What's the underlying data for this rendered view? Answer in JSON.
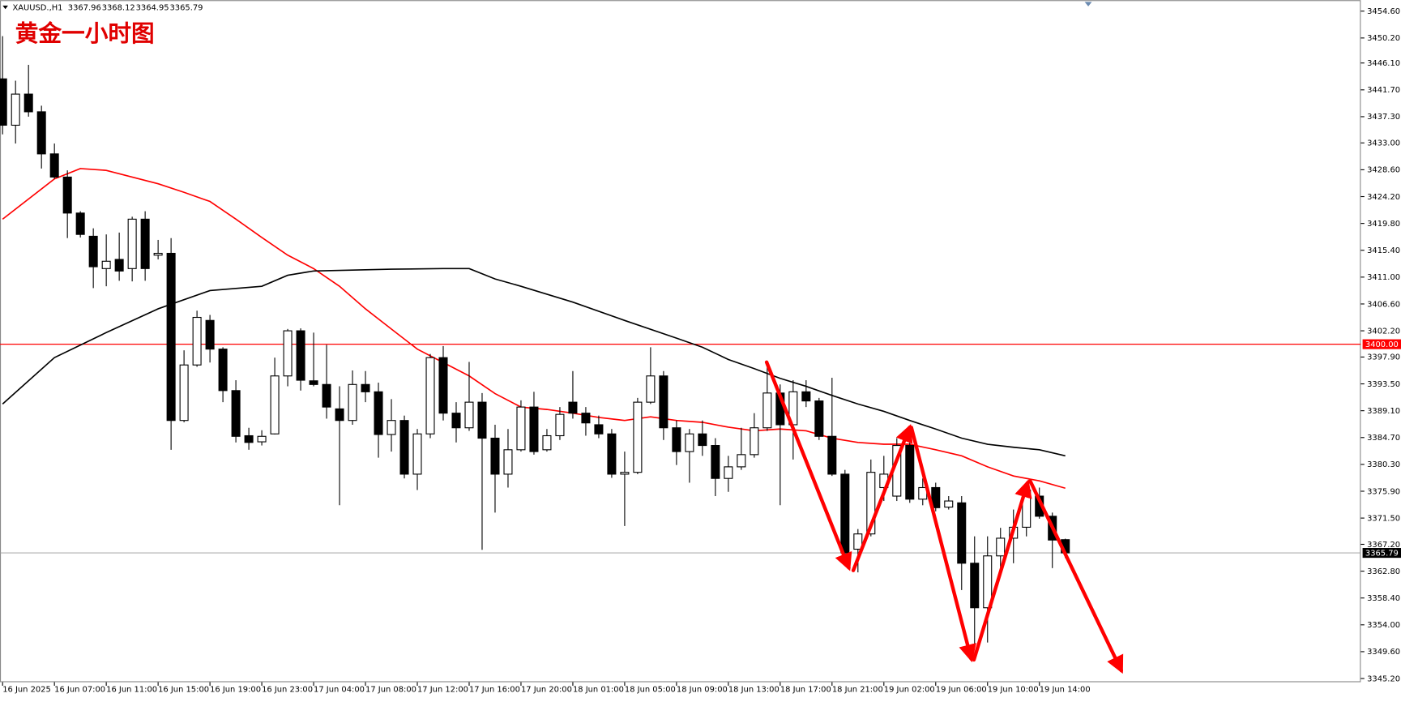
{
  "chart_data": {
    "type": "candlestick",
    "title": "黄金一小时图",
    "symbol": "XAUUSD.,H1",
    "categories": [
      "16 Jun 2025",
      null,
      null,
      null,
      "16 Jun 07:00",
      null,
      null,
      null,
      "16 Jun 11:00",
      null,
      null,
      null,
      "16 Jun 15:00",
      null,
      null,
      null,
      "16 Jun 19:00",
      null,
      null,
      null,
      "16 Jun 23:00",
      null,
      null,
      null,
      "17 Jun 04:00",
      null,
      null,
      null,
      "17 Jun 08:00",
      null,
      null,
      null,
      "17 Jun 12:00",
      null,
      null,
      null,
      "17 Jun 16:00",
      null,
      null,
      null,
      "17 Jun 20:00",
      null,
      null,
      null,
      "18 Jun 01:00",
      null,
      null,
      null,
      "18 Jun 05:00",
      null,
      null,
      null,
      "18 Jun 09:00",
      null,
      null,
      null,
      "18 Jun 13:00",
      null,
      null,
      null,
      "18 Jun 17:00",
      null,
      null,
      null,
      "18 Jun 21:00",
      null,
      null,
      null,
      "19 Jun 02:00",
      null,
      null,
      null,
      "19 Jun 06:00",
      null,
      null,
      null,
      "19 Jun 10:00",
      null,
      null,
      null,
      "19 Jun 14:00",
      null,
      null
    ],
    "open": [
      3443.5,
      3435.9,
      3441.0,
      3438.1,
      3431.2,
      3427.4,
      3421.5,
      3417.7,
      3412.4,
      3413.9,
      3412.4,
      3420.5,
      3414.6,
      3414.9,
      3387.5,
      3396.6,
      3403.9,
      3399.2,
      3392.4,
      3385.0,
      3384.0,
      3385.3,
      3394.8,
      3402.2,
      3394.0,
      3393.4,
      3389.4,
      3387.5,
      3393.4,
      3392.2,
      3385.2,
      3387.5,
      3378.7,
      3385.3,
      3397.8,
      3388.7,
      3386.3,
      3390.5,
      3384.6,
      3378.7,
      3382.7,
      3389.7,
      3382.7,
      3385.0,
      3390.5,
      3388.7,
      3386.8,
      3385.3,
      3378.7,
      3379.0,
      3390.5,
      3394.8,
      3386.3,
      3382.4,
      3385.3,
      3383.4,
      3378.0,
      3379.9,
      3381.9,
      3386.3,
      3392.0,
      3386.8,
      3392.2,
      3390.7,
      3384.9,
      3378.7,
      3366.4,
      3368.9,
      3376.5,
      3375.1,
      3383.4,
      3374.6,
      3376.5,
      3373.3,
      3374.0,
      3364.1,
      3356.8,
      3365.3,
      3368.2,
      3370.0,
      3375.1,
      3371.8,
      3367.96
    ],
    "high": [
      3450.5,
      3443.2,
      3445.8,
      3439.1,
      3432.9,
      3428.5,
      3421.8,
      3419.0,
      3418.0,
      3418.3,
      3420.9,
      3421.8,
      3417.1,
      3417.4,
      3399.0,
      3405.5,
      3404.8,
      3399.5,
      3394.1,
      3386.3,
      3385.9,
      3397.8,
      3402.5,
      3402.6,
      3401.9,
      3399.9,
      3393.1,
      3395.7,
      3395.6,
      3393.7,
      3391.0,
      3388.3,
      3386.1,
      3398.4,
      3399.7,
      3390.5,
      3397.1,
      3392.0,
      3386.8,
      3386.1,
      3390.8,
      3392.2,
      3386.1,
      3389.7,
      3395.6,
      3389.7,
      3388.3,
      3386.1,
      3382.4,
      3391.2,
      3399.5,
      3395.6,
      3387.5,
      3386.1,
      3387.5,
      3384.6,
      3381.7,
      3386.3,
      3388.7,
      3397.1,
      3393.4,
      3394.1,
      3394.1,
      3391.2,
      3394.5,
      3379.4,
      3369.7,
      3381.1,
      3381.7,
      3384.6,
      3386.3,
      3378.0,
      3377.3,
      3375.1,
      3375.1,
      3368.5,
      3368.5,
      3369.9,
      3372.9,
      3377.3,
      3376.5,
      3372.4,
      3368.12
    ],
    "low": [
      3434.4,
      3432.9,
      3437.3,
      3428.8,
      3427.1,
      3417.4,
      3417.5,
      3409.2,
      3409.5,
      3410.4,
      3410.3,
      3410.4,
      3413.9,
      3382.7,
      3387.2,
      3396.3,
      3397.0,
      3390.5,
      3383.9,
      3382.7,
      3383.4,
      3385.2,
      3393.1,
      3392.4,
      3393.1,
      3387.8,
      3373.6,
      3386.8,
      3390.5,
      3381.4,
      3382.4,
      3378.0,
      3376.1,
      3384.6,
      3387.5,
      3383.9,
      3385.8,
      3366.3,
      3372.4,
      3376.5,
      3382.4,
      3381.9,
      3382.4,
      3384.3,
      3387.8,
      3385.0,
      3384.6,
      3378.1,
      3370.2,
      3378.7,
      3390.2,
      3384.3,
      3380.2,
      3377.3,
      3381.7,
      3375.1,
      3375.8,
      3379.4,
      3381.4,
      3385.8,
      3373.6,
      3381.1,
      3389.7,
      3384.3,
      3378.4,
      3364.1,
      3362.6,
      3368.5,
      3374.3,
      3374.3,
      3374.0,
      3373.6,
      3372.6,
      3372.9,
      3359.7,
      3350.9,
      3351.1,
      3362.6,
      3364.1,
      3368.5,
      3371.4,
      3363.3,
      3364.95
    ],
    "close": [
      3435.9,
      3441.0,
      3438.1,
      3431.2,
      3427.4,
      3421.5,
      3418.0,
      3412.7,
      3413.6,
      3412.0,
      3420.5,
      3412.4,
      3414.9,
      3387.5,
      3396.6,
      3404.4,
      3399.2,
      3392.4,
      3384.9,
      3383.9,
      3384.9,
      3394.8,
      3402.2,
      3394.1,
      3393.4,
      3389.7,
      3387.5,
      3393.4,
      3392.2,
      3385.2,
      3387.5,
      3378.7,
      3385.3,
      3397.8,
      3388.7,
      3386.3,
      3390.5,
      3384.6,
      3378.7,
      3382.7,
      3389.7,
      3382.4,
      3385.0,
      3388.5,
      3388.7,
      3387.1,
      3385.3,
      3378.7,
      3379.0,
      3390.5,
      3394.8,
      3386.3,
      3382.4,
      3385.3,
      3383.4,
      3378.0,
      3379.9,
      3381.9,
      3386.3,
      3392.0,
      3386.8,
      3392.2,
      3390.7,
      3384.9,
      3378.7,
      3365.8,
      3368.9,
      3379.0,
      3378.7,
      3383.4,
      3374.6,
      3376.5,
      3373.2,
      3374.3,
      3364.1,
      3356.8,
      3365.3,
      3368.2,
      3370.0,
      3376.1,
      3371.8,
      3367.9,
      3365.79
    ],
    "up_color": "#ffffff",
    "down_color": "#000000",
    "series": [
      {
        "color": "#ff0000",
        "x": [
          0,
          4,
          6,
          8,
          10,
          12,
          14,
          16,
          18,
          20,
          22,
          24,
          26,
          28,
          30,
          32,
          34,
          36,
          38,
          40,
          42,
          44,
          46,
          48,
          50,
          52,
          54,
          56,
          58,
          60,
          62,
          64,
          66,
          68,
          70,
          72,
          74,
          76,
          78,
          80,
          82
        ],
        "values": [
          3420.5,
          3427.1,
          3428.8,
          3428.5,
          3427.4,
          3426.3,
          3424.9,
          3423.4,
          3420.5,
          3417.5,
          3414.6,
          3412.4,
          3409.5,
          3405.8,
          3402.5,
          3399.2,
          3397.0,
          3394.8,
          3391.9,
          3389.7,
          3389.3,
          3388.7,
          3388.0,
          3387.5,
          3388.1,
          3387.5,
          3387.2,
          3386.4,
          3385.8,
          3386.1,
          3385.8,
          3384.6,
          3383.9,
          3383.6,
          3383.6,
          3382.7,
          3381.7,
          3379.9,
          3378.4,
          3377.6,
          3376.4
        ]
      },
      {
        "color": "#000000",
        "x": [
          0,
          4,
          8,
          12,
          16,
          20,
          22,
          24,
          26,
          30,
          34,
          36,
          38,
          40,
          44,
          48,
          52,
          54,
          56,
          58,
          60,
          62,
          64,
          66,
          68,
          70,
          72,
          74,
          76,
          78,
          80,
          82
        ],
        "values": [
          3390.2,
          3397.8,
          3401.9,
          3405.8,
          3408.8,
          3409.5,
          3411.3,
          3412.0,
          3412.1,
          3412.3,
          3412.4,
          3412.4,
          3410.7,
          3409.5,
          3406.9,
          3403.9,
          3401.0,
          3399.5,
          3397.5,
          3396.0,
          3394.4,
          3393.1,
          3391.6,
          3390.2,
          3389.0,
          3387.5,
          3386.1,
          3384.6,
          3383.6,
          3383.1,
          3382.7,
          3381.7
        ]
      }
    ],
    "hlines": [
      {
        "value": 3400,
        "label": "3400.00",
        "color": "#ff0000"
      }
    ],
    "xlim": [
      -0.2,
      104.8
    ],
    "ylim": [
      3344.6,
      3456.4
    ],
    "yticks": [
      {
        "value": 3345.2,
        "label": "3345.20"
      },
      {
        "value": 3349.6,
        "label": "3349.60"
      },
      {
        "value": 3354.0,
        "label": "3354.00"
      },
      {
        "value": 3358.4,
        "label": "3358.40"
      },
      {
        "value": 3362.8,
        "label": "3362.80"
      },
      {
        "value": 3367.2,
        "label": "3367.20"
      },
      {
        "value": 3371.5,
        "label": "3371.50"
      },
      {
        "value": 3375.9,
        "label": "3375.90"
      },
      {
        "value": 3380.3,
        "label": "3380.30"
      },
      {
        "value": 3384.7,
        "label": "3384.70"
      },
      {
        "value": 3389.1,
        "label": "3389.10"
      },
      {
        "value": 3393.5,
        "label": "3393.50"
      },
      {
        "value": 3397.9,
        "label": "3397.90"
      },
      {
        "value": 3402.2,
        "label": "3402.20"
      },
      {
        "value": 3406.6,
        "label": "3406.60"
      },
      {
        "value": 3411.0,
        "label": "3411.00"
      },
      {
        "value": 3415.4,
        "label": "3415.40"
      },
      {
        "value": 3419.8,
        "label": "3419.80"
      },
      {
        "value": 3424.2,
        "label": "3424.20"
      },
      {
        "value": 3428.6,
        "label": "3428.60"
      },
      {
        "value": 3433.0,
        "label": "3433.00"
      },
      {
        "value": 3437.3,
        "label": "3437.30"
      },
      {
        "value": 3441.7,
        "label": "3441.70"
      },
      {
        "value": 3446.1,
        "label": "3446.10"
      },
      {
        "value": 3450.2,
        "label": "3450.20"
      },
      {
        "value": 3454.6,
        "label": "3454.60"
      }
    ],
    "grid": false
  }
}
